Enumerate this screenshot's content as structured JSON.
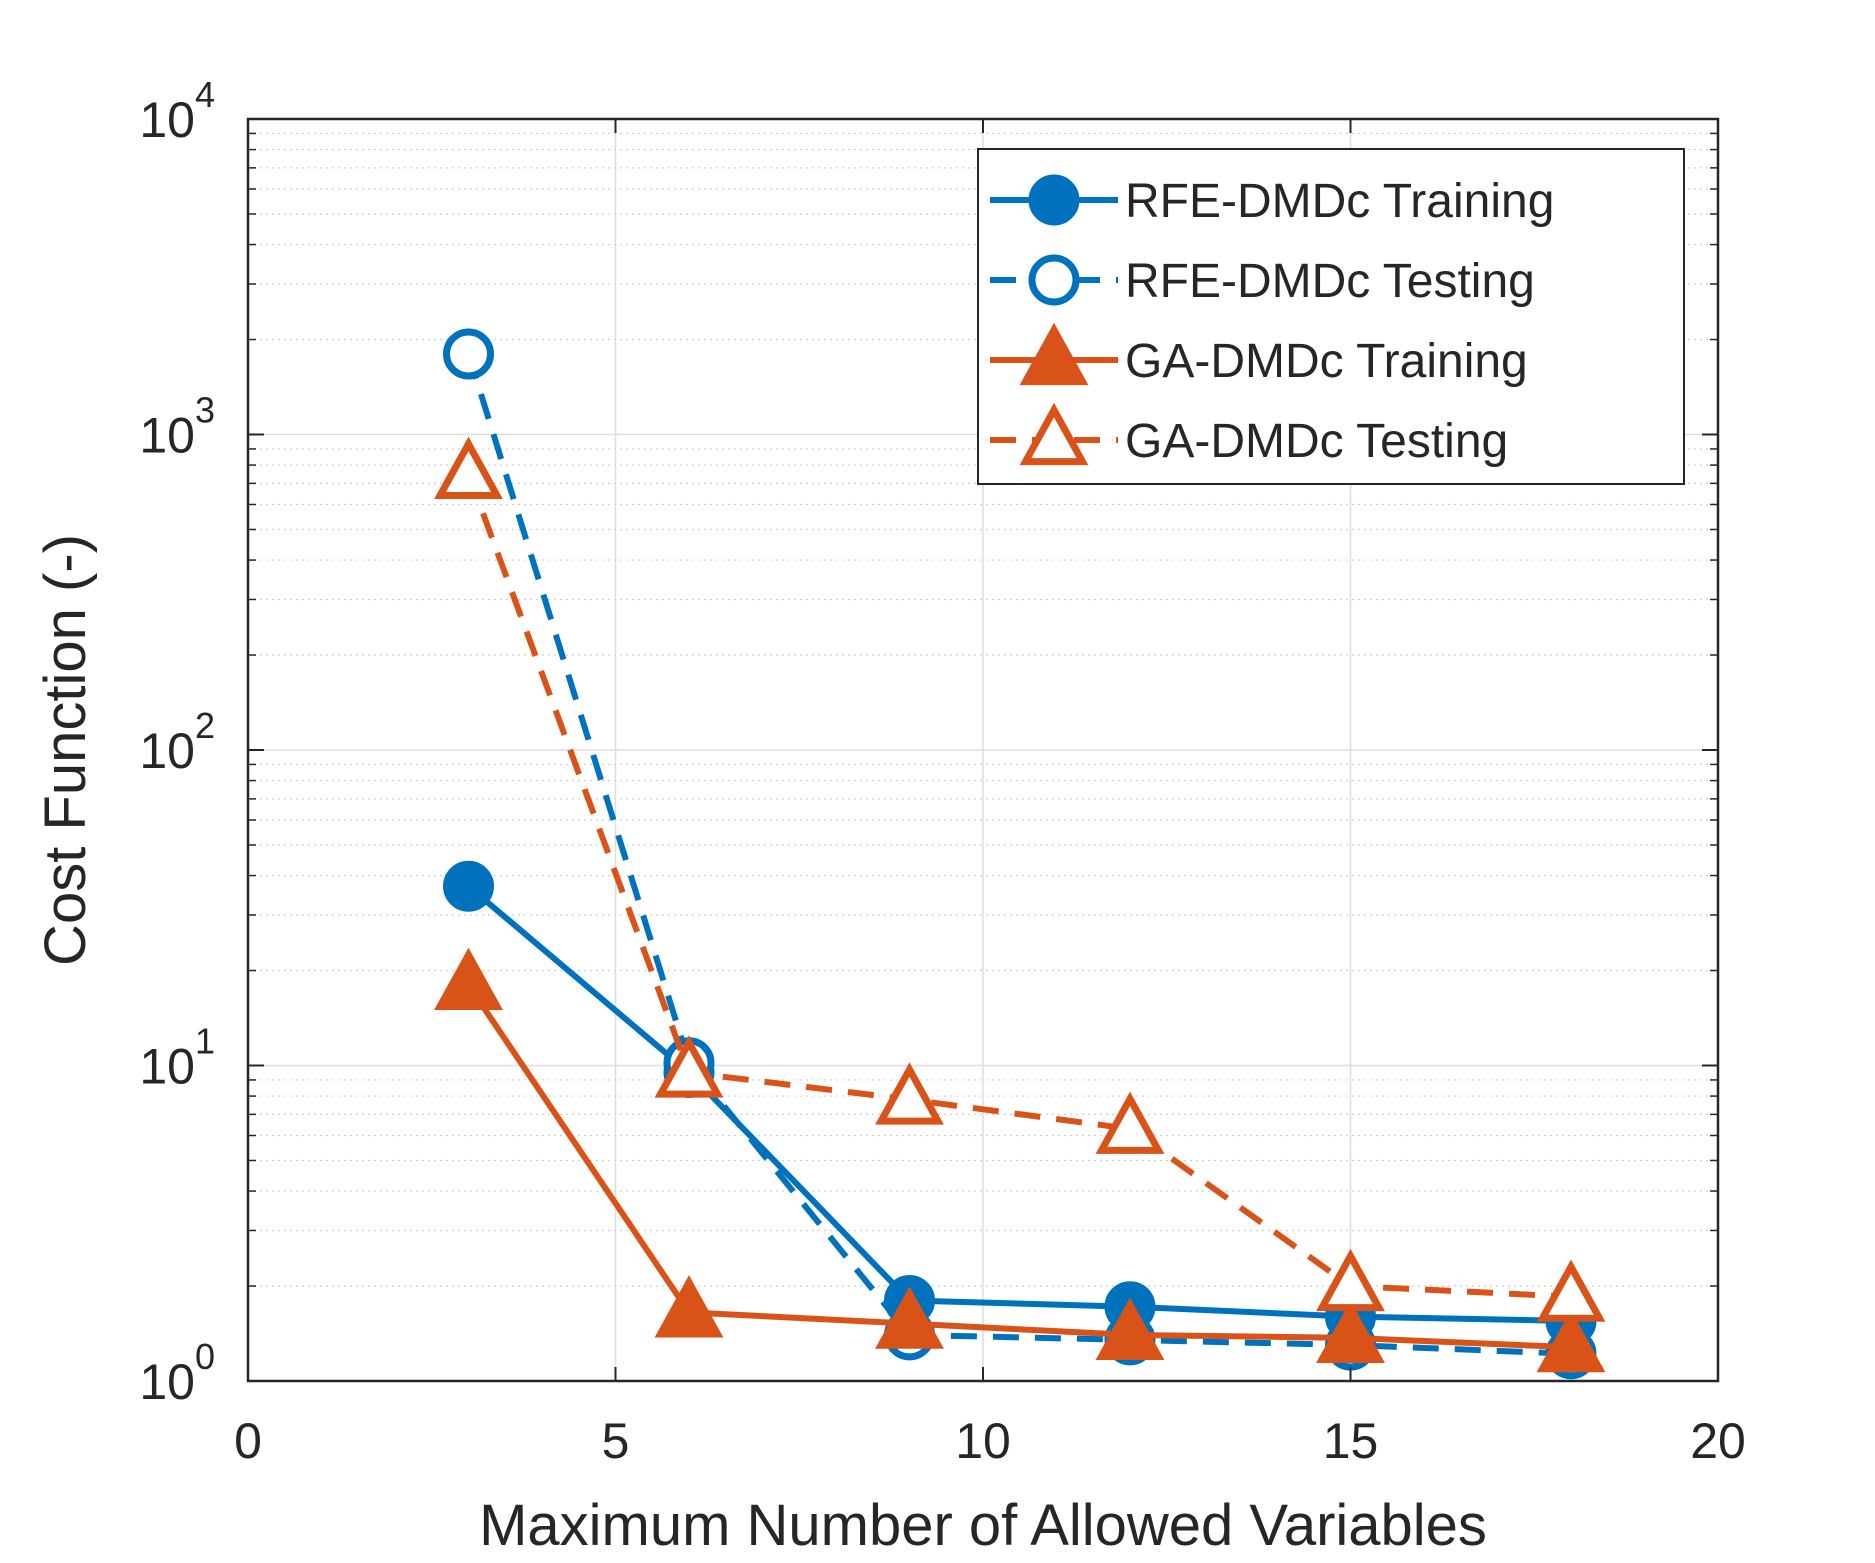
{
  "chart_data": {
    "type": "line",
    "title": "",
    "xlabel": "Maximum Number of Allowed Variables",
    "ylabel": "Cost Function (-)",
    "xlim": [
      0,
      20
    ],
    "ylim": [
      1,
      10000
    ],
    "yscale": "log",
    "grid": true,
    "legend_position": "top-right",
    "x_ticks": [
      {
        "value": 0,
        "label": "0"
      },
      {
        "value": 5,
        "label": "5"
      },
      {
        "value": 10,
        "label": "10"
      },
      {
        "value": 15,
        "label": "15"
      },
      {
        "value": 20,
        "label": "20"
      }
    ],
    "y_ticks": [
      {
        "value": 1,
        "base": "10",
        "exp": "0"
      },
      {
        "value": 10,
        "base": "10",
        "exp": "1"
      },
      {
        "value": 100,
        "base": "10",
        "exp": "2"
      },
      {
        "value": 1000,
        "base": "10",
        "exp": "3"
      },
      {
        "value": 10000,
        "base": "10",
        "exp": "4"
      }
    ],
    "x": [
      3,
      6,
      9,
      12,
      15,
      18
    ],
    "series": [
      {
        "name": "RFE-DMDc Training",
        "color": "#0072BD",
        "linestyle": "solid",
        "marker": "circle",
        "filled": true,
        "values": [
          37,
          9.5,
          1.8,
          1.72,
          1.6,
          1.55
        ]
      },
      {
        "name": "RFE-DMDc Testing",
        "color": "#0072BD",
        "linestyle": "dashed",
        "marker": "circle",
        "filled": false,
        "values": [
          1800,
          10.2,
          1.4,
          1.35,
          1.3,
          1.22
        ]
      },
      {
        "name": "GA-DMDc Training",
        "color": "#D95319",
        "linestyle": "solid",
        "marker": "triangle",
        "filled": true,
        "values": [
          18,
          1.65,
          1.52,
          1.4,
          1.37,
          1.28
        ]
      },
      {
        "name": "GA-DMDc Testing",
        "color": "#D95319",
        "linestyle": "dashed",
        "marker": "triangle",
        "filled": false,
        "values": [
          750,
          9.5,
          7.8,
          6.3,
          2.0,
          1.85
        ]
      }
    ]
  }
}
